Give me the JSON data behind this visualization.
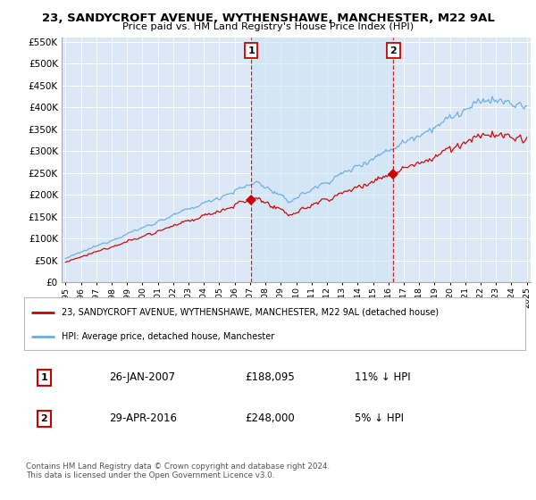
{
  "title": "23, SANDYCROFT AVENUE, WYTHENSHAWE, MANCHESTER, M22 9AL",
  "subtitle": "Price paid vs. HM Land Registry's House Price Index (HPI)",
  "legend_line1": "23, SANDYCROFT AVENUE, WYTHENSHAWE, MANCHESTER, M22 9AL (detached house)",
  "legend_line2": "HPI: Average price, detached house, Manchester",
  "annotation1_label": "1",
  "annotation1_date": "26-JAN-2007",
  "annotation1_price": "£188,095",
  "annotation1_hpi": "11% ↓ HPI",
  "annotation2_label": "2",
  "annotation2_date": "29-APR-2016",
  "annotation2_price": "£248,000",
  "annotation2_hpi": "5% ↓ HPI",
  "footer": "Contains HM Land Registry data © Crown copyright and database right 2024.\nThis data is licensed under the Open Government Licence v3.0.",
  "sale1_year": 2007.08,
  "sale1_value": 188095,
  "sale2_year": 2016.33,
  "sale2_value": 248000,
  "hpi_color": "#6aade4",
  "price_color": "#cc0000",
  "dashed_color": "#cc0000",
  "shade_color": "#d0e4f5",
  "background_plot": "#dce8f5",
  "background_fig": "#ffffff",
  "grid_color": "#ffffff",
  "ylim": [
    0,
    560000
  ],
  "yticks": [
    0,
    50000,
    100000,
    150000,
    200000,
    250000,
    300000,
    350000,
    400000,
    450000,
    500000,
    550000
  ],
  "xlim_start": 1994.75,
  "xlim_end": 2025.25,
  "x_tick_start": 1995,
  "x_tick_end": 2025
}
